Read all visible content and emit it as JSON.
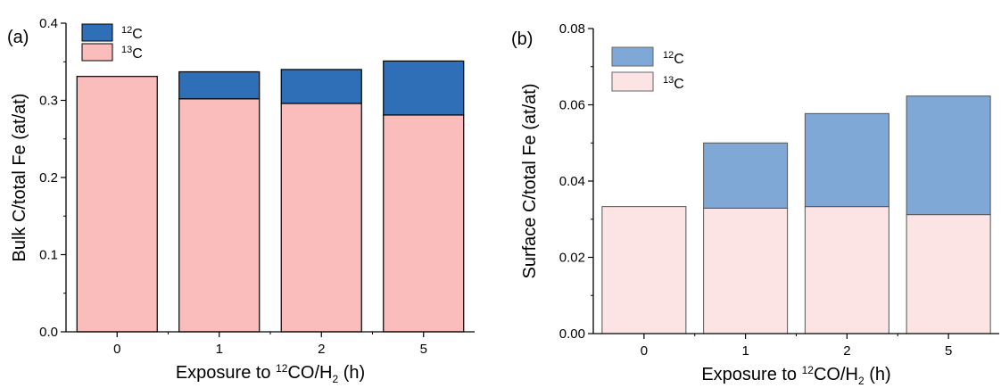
{
  "chart_data": [
    {
      "type": "bar",
      "stacked": true,
      "panel_label": "(a)",
      "categories": [
        "0",
        "1",
        "2",
        "5"
      ],
      "series": [
        {
          "name": "13C",
          "legend_sup": "13",
          "legend_main": "C",
          "color": "#fbbcbc",
          "values": [
            0.331,
            0.302,
            0.296,
            0.281
          ]
        },
        {
          "name": "12C",
          "legend_sup": "12",
          "legend_main": "C",
          "color": "#2f6fb8",
          "values": [
            0.0,
            0.035,
            0.044,
            0.07
          ]
        }
      ],
      "ylabel": "Bulk C/total Fe (at/at)",
      "xlabel": {
        "pre": "Exposure to ",
        "sup": "12",
        "mid": "CO/H",
        "sub": "2",
        "post": " (h)"
      },
      "ylim": [
        0,
        0.4
      ],
      "yticks": [
        "0.0",
        "0.1",
        "0.2",
        "0.3",
        "0.4"
      ],
      "grid": false,
      "legend_position": "top-left"
    },
    {
      "type": "bar",
      "stacked": true,
      "panel_label": "(b)",
      "categories": [
        "0",
        "1",
        "2",
        "5"
      ],
      "series": [
        {
          "name": "13C",
          "legend_sup": "13",
          "legend_main": "C",
          "color": "#fde4e4",
          "values": [
            0.0333,
            0.0329,
            0.0333,
            0.0312
          ]
        },
        {
          "name": "12C",
          "legend_sup": "12",
          "legend_main": "C",
          "color": "#80a8d6",
          "values": [
            0.0,
            0.0171,
            0.0244,
            0.0311
          ]
        }
      ],
      "ylabel": "Surface C/total Fe (at/at)",
      "xlabel": {
        "pre": "Exposure to ",
        "sup": "12",
        "mid": "CO/H",
        "sub": "2",
        "post": " (h)"
      },
      "ylim": [
        0,
        0.08
      ],
      "yticks": [
        "0.00",
        "0.02",
        "0.04",
        "0.06",
        "0.08"
      ],
      "grid": false,
      "legend_position": "top-left"
    }
  ]
}
